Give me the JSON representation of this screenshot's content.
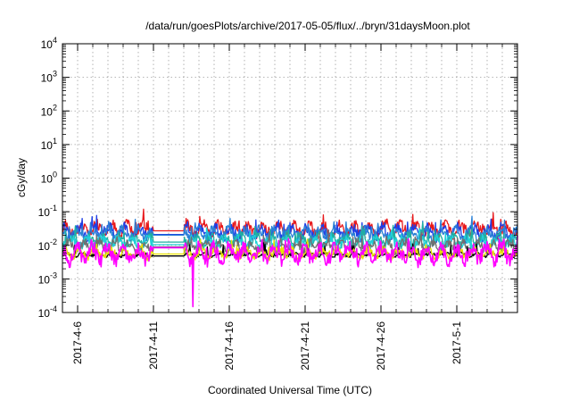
{
  "chart_data": {
    "type": "line",
    "title": "/data/run/goesPlots/archive/2017-05-05/flux/../bryn/31daysMoon.plot",
    "xlabel": "Coordinated Universal Time (UTC)",
    "ylabel": "cGy/day",
    "yscale": "log",
    "ylim": [
      0.0001,
      10000
    ],
    "xlim": [
      "2017-04-05",
      "2017-05-05"
    ],
    "grid": true,
    "legend": "none",
    "x_ticks": [
      "2017-4-6",
      "2017-4-11",
      "2017-4-16",
      "2017-4-21",
      "2017-4-26",
      "2017-5-1"
    ],
    "y_ticks": [
      {
        "base": "10",
        "exp": "-4",
        "value": 0.0001
      },
      {
        "base": "10",
        "exp": "-3",
        "value": 0.001
      },
      {
        "base": "10",
        "exp": "-2",
        "value": 0.01
      },
      {
        "base": "10",
        "exp": "-1",
        "value": 0.1
      },
      {
        "base": "10",
        "exp": "0",
        "value": 1
      },
      {
        "base": "10",
        "exp": "1",
        "value": 10
      },
      {
        "base": "10",
        "exp": "2",
        "value": 100
      },
      {
        "base": "10",
        "exp": "3",
        "value": 1000
      },
      {
        "base": "10",
        "exp": "4",
        "value": 10000
      }
    ],
    "series": [
      {
        "color": "#e8191c",
        "baseline": 0.03,
        "spread": 0.35,
        "flat_value": 0.027,
        "gap_start": "2017-04-11",
        "gap_end": "2017-04-13"
      },
      {
        "color": "#1e3fe6",
        "baseline": 0.024,
        "spread": 0.35,
        "flat_value": 0.021,
        "gap_start": "2017-04-11",
        "gap_end": "2017-04-13"
      },
      {
        "color": "#2a80d6",
        "baseline": 0.022,
        "spread": 0.3,
        "flat_value": 0.02,
        "gap_start": "2017-04-11",
        "gap_end": "2017-04-13"
      },
      {
        "color": "#1fb0a0",
        "baseline": 0.014,
        "spread": 0.3,
        "flat_value": 0.0125,
        "gap_start": "2017-04-11",
        "gap_end": "2017-04-13"
      },
      {
        "color": "#20d0d8",
        "baseline": 0.012,
        "spread": 0.3,
        "flat_value": 0.0105,
        "gap_start": "2017-04-11",
        "gap_end": "2017-04-13"
      },
      {
        "color": "#707070",
        "baseline": 0.009,
        "spread": 0.3,
        "flat_value": 0.009,
        "gap_start": "2017-04-11",
        "gap_end": "2017-04-13"
      },
      {
        "color": "#000000",
        "baseline": 0.0052,
        "spread": 0.1,
        "flat_value": 0.0048,
        "gap_start": "2017-04-11",
        "gap_end": "2017-04-13"
      },
      {
        "color": "#e8e000",
        "baseline": 0.0058,
        "spread": 0.25,
        "flat_value": 0.0055,
        "gap_start": "2017-04-11",
        "gap_end": "2017-04-13"
      },
      {
        "color": "#ff00ff",
        "baseline": 0.0055,
        "spread": 0.45,
        "flat_value": 0.0085,
        "gap_start": "2017-04-11",
        "gap_end": "2017-04-13",
        "dip": {
          "x": "2017-04-13T14:00",
          "y": 0.00015
        }
      }
    ]
  }
}
